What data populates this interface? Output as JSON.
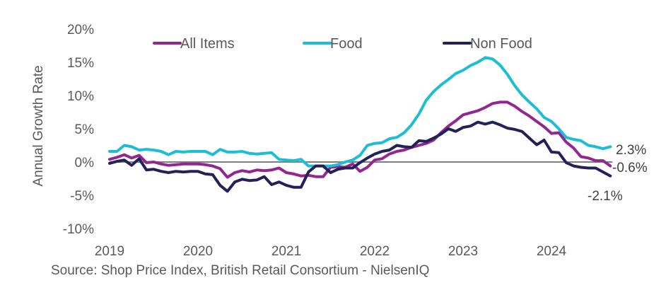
{
  "chart_data": {
    "type": "line",
    "title": "",
    "xlabel": "",
    "ylabel": "Annual Growth Rate",
    "ylim": [
      -10,
      20
    ],
    "yticks": [
      20,
      15,
      10,
      5,
      0,
      -5,
      -10
    ],
    "ytick_labels": [
      "20%",
      "15%",
      "10%",
      "5%",
      "0%",
      "-5%",
      "-10%"
    ],
    "xtick_labels": [
      "2019",
      "2020",
      "2021",
      "2022",
      "2023",
      "2024"
    ],
    "x_start": "2019-01",
    "x_end": "2024-09",
    "frequency": "monthly",
    "grid": false,
    "zero_line": true,
    "legend_position": "top",
    "series": [
      {
        "name": "All Items",
        "color": "#92278F",
        "end_label": "-0.6%",
        "values": [
          0.4,
          0.7,
          1.1,
          0.6,
          1.0,
          -0.1,
          0.0,
          -0.3,
          -0.5,
          -0.4,
          -0.3,
          -0.3,
          -0.3,
          -0.4,
          -0.6,
          -1.0,
          -2.3,
          -1.6,
          -1.3,
          -1.5,
          -1.2,
          -1.3,
          -1.2,
          -0.9,
          -1.6,
          -1.8,
          -2.1,
          -2.0,
          -2.2,
          -2.2,
          -0.8,
          -0.7,
          -0.8,
          -0.3,
          -1.4,
          -0.8,
          0.3,
          0.5,
          1.2,
          1.6,
          1.8,
          2.2,
          2.5,
          2.8,
          3.3,
          4.4,
          5.4,
          6.2,
          7.1,
          7.4,
          7.7,
          8.2,
          8.8,
          9.0,
          9.0,
          8.4,
          7.6,
          6.9,
          6.1,
          5.3,
          4.3,
          4.4,
          3.0,
          2.1,
          0.8,
          0.6,
          0.2,
          0.2,
          -0.6
        ]
      },
      {
        "name": "Food",
        "color": "#1DBED4",
        "end_label": "2.3%",
        "values": [
          1.6,
          1.6,
          2.5,
          2.3,
          1.8,
          1.9,
          1.8,
          1.6,
          1.1,
          1.6,
          1.5,
          1.6,
          1.6,
          1.6,
          1.1,
          1.9,
          1.5,
          1.5,
          1.6,
          1.3,
          1.2,
          1.3,
          1.4,
          0.4,
          0.3,
          0.2,
          0.4,
          -0.6,
          -0.6,
          -0.6,
          -0.6,
          -0.4,
          0.0,
          0.3,
          1.0,
          2.5,
          2.8,
          2.9,
          3.5,
          3.7,
          4.4,
          5.6,
          7.2,
          9.3,
          10.6,
          11.6,
          12.4,
          13.3,
          13.8,
          14.5,
          15.0,
          15.7,
          15.5,
          14.6,
          13.2,
          11.5,
          10.1,
          9.0,
          8.0,
          6.7,
          6.1,
          5.0,
          3.7,
          3.4,
          3.2,
          2.5,
          2.3,
          2.0,
          2.3
        ]
      },
      {
        "name": "Non Food",
        "color": "#232157",
        "end_label": "-2.1%",
        "values": [
          -0.2,
          0.1,
          0.3,
          -0.5,
          0.5,
          -1.2,
          -1.1,
          -1.4,
          -1.6,
          -1.4,
          -1.5,
          -1.4,
          -1.4,
          -1.8,
          -1.9,
          -3.5,
          -4.4,
          -3.0,
          -2.6,
          -2.8,
          -2.7,
          -2.2,
          -3.4,
          -3.0,
          -3.5,
          -3.8,
          -3.8,
          -1.5,
          -0.6,
          -0.6,
          -1.6,
          -1.1,
          -0.9,
          -0.9,
          -0.1,
          0.6,
          1.2,
          1.6,
          1.8,
          2.5,
          2.3,
          2.2,
          3.2,
          3.1,
          3.6,
          4.2,
          5.0,
          4.6,
          5.2,
          5.4,
          6.0,
          5.7,
          6.0,
          5.6,
          5.1,
          4.9,
          4.6,
          3.6,
          2.6,
          3.3,
          1.5,
          1.4,
          -0.1,
          -0.6,
          -0.8,
          -0.9,
          -0.9,
          -1.5,
          -2.1
        ]
      }
    ]
  },
  "source": "Source: Shop Price Index, British Retail Consortium - NielsenIQ"
}
